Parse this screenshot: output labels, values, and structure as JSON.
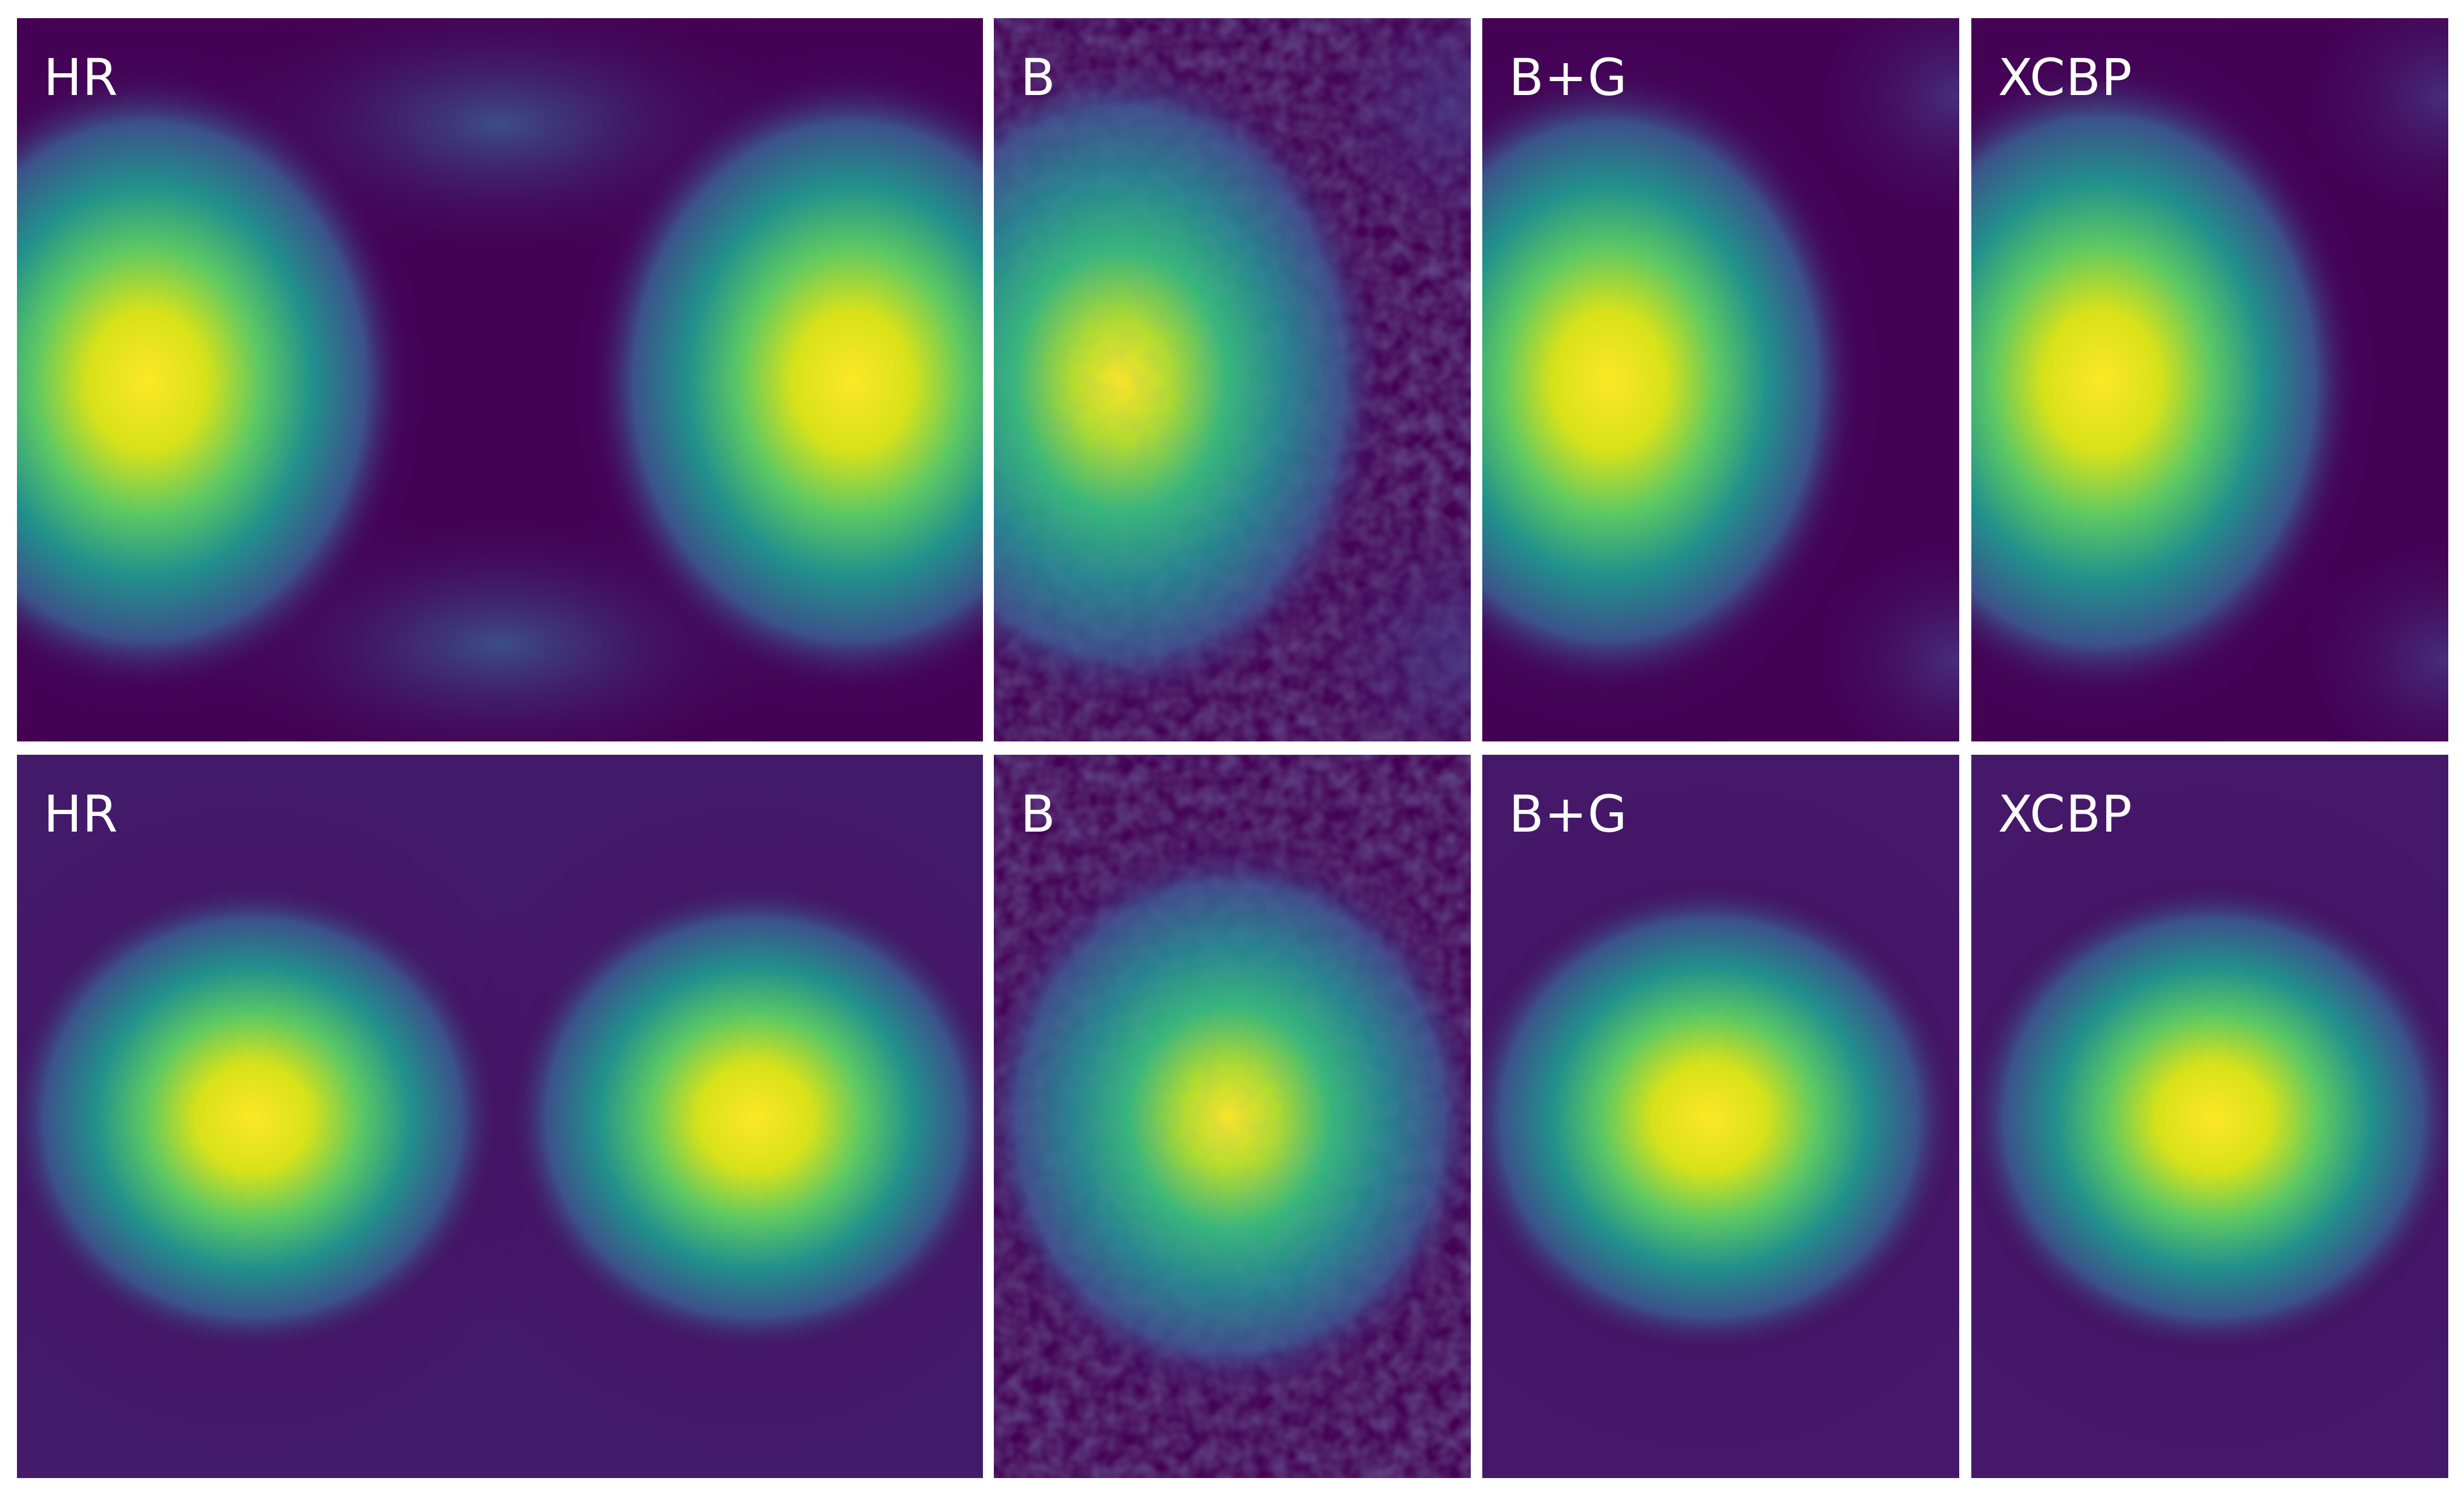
{
  "colormap": [
    "#440154",
    "#3b528b",
    "#21918c",
    "#5ec962",
    "#fde725"
  ],
  "rows": [
    {
      "panels": [
        {
          "label": "HR"
        },
        {
          "label": "B"
        },
        {
          "label": "B+G"
        },
        {
          "label": "XCBP"
        }
      ]
    },
    {
      "panels": [
        {
          "label": "HR"
        },
        {
          "label": "B"
        },
        {
          "label": "B+G"
        },
        {
          "label": "XCBP"
        }
      ]
    }
  ]
}
